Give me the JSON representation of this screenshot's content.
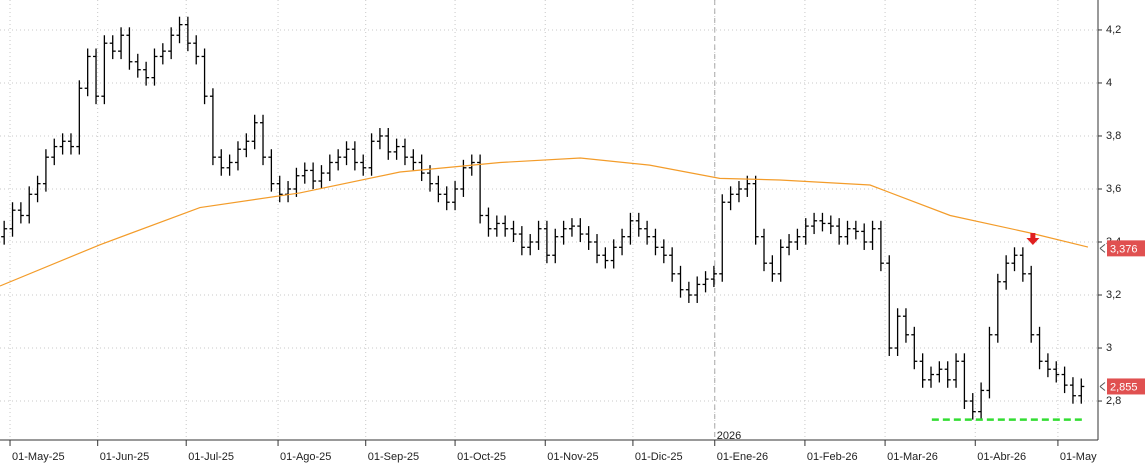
{
  "chart_data": {
    "type": "ohlc",
    "xlim": [
      -0.5,
      131
    ],
    "ylim": [
      2.653,
      4.313
    ],
    "yticks": [
      {
        "value": 2.8,
        "label": "2,8"
      },
      3,
      {
        "value": 3.2,
        "label": "3,2"
      },
      {
        "value": 3.4,
        "label": "3,4"
      },
      {
        "value": 3.6,
        "label": "3,6"
      },
      {
        "value": 3.8,
        "label": "3,8"
      },
      4,
      {
        "value": 4.2,
        "label": "4,2"
      }
    ],
    "xticks": [
      {
        "value": 0.7,
        "label": "01-May-25"
      },
      {
        "value": 11.2,
        "label": "01-Jun-25"
      },
      {
        "value": 21.8,
        "label": "01-Jul-25"
      },
      {
        "value": 32.8,
        "label": "01-Ago-25"
      },
      {
        "value": 43.3,
        "label": "01-Sep-25"
      },
      {
        "value": 54,
        "label": "01-Oct-25"
      },
      {
        "value": 64.8,
        "label": "01-Nov-25"
      },
      {
        "value": 75.3,
        "label": "01-Dic-25"
      },
      {
        "value": 85.1,
        "label": "01-Ene-26"
      },
      {
        "value": 95.9,
        "label": "01-Feb-26"
      },
      {
        "value": 105.5,
        "label": "01-Mar-26"
      },
      {
        "value": 116.3,
        "label": "01-Abr-26"
      },
      {
        "value": 126.2,
        "label": "01-May"
      }
    ],
    "grid": true,
    "year_marker": {
      "x": 85.1,
      "label": "2026"
    },
    "series": [
      {
        "color": "#000000",
        "open": [
          3.42,
          3.45,
          3.52,
          3.5,
          3.58,
          3.62,
          3.72,
          3.76,
          3.78,
          3.76,
          3.98,
          4.1,
          3.95,
          4.15,
          4.12,
          4.18,
          4.08,
          4.05,
          4.02,
          4.1,
          4.12,
          4.18,
          4.22,
          4.15,
          4.1,
          3.95,
          3.72,
          3.68,
          3.7,
          3.75,
          3.78,
          3.85,
          3.72,
          3.62,
          3.58,
          3.6,
          3.65,
          3.67,
          3.63,
          3.66,
          3.7,
          3.72,
          3.75,
          3.7,
          3.68,
          3.78,
          3.8,
          3.74,
          3.76,
          3.72,
          3.7,
          3.66,
          3.62,
          3.58,
          3.55,
          3.6,
          3.68,
          3.7,
          3.5,
          3.45,
          3.47,
          3.45,
          3.43,
          3.38,
          3.4,
          3.45,
          3.35,
          3.42,
          3.45,
          3.46,
          3.43,
          3.4,
          3.35,
          3.33,
          3.38,
          3.42,
          3.48,
          3.45,
          3.42,
          3.38,
          3.35,
          3.28,
          3.22,
          3.2,
          3.24,
          3.26,
          3.28,
          3.55,
          3.58,
          3.6,
          3.62,
          3.42,
          3.32,
          3.28,
          3.38,
          3.4,
          3.42,
          3.46,
          3.48,
          3.47,
          3.46,
          3.42,
          3.45,
          3.44,
          3.4,
          3.45,
          3.32,
          3.0,
          3.12,
          3.05,
          2.95,
          2.88,
          2.9,
          2.92,
          2.88,
          2.95,
          2.8,
          2.76,
          2.84,
          3.05,
          3.25,
          3.32,
          3.35,
          3.28,
          3.05,
          2.95,
          2.92,
          2.9,
          2.86,
          2.82
        ],
        "high": [
          3.48,
          3.55,
          3.55,
          3.61,
          3.65,
          3.75,
          3.79,
          3.81,
          3.81,
          4.01,
          4.13,
          4.13,
          4.18,
          4.18,
          4.21,
          4.21,
          4.11,
          4.08,
          4.13,
          4.15,
          4.21,
          4.25,
          4.25,
          4.18,
          4.13,
          3.98,
          3.75,
          3.73,
          3.78,
          3.81,
          3.88,
          3.88,
          3.75,
          3.65,
          3.63,
          3.68,
          3.7,
          3.7,
          3.69,
          3.73,
          3.75,
          3.78,
          3.78,
          3.73,
          3.81,
          3.83,
          3.83,
          3.79,
          3.79,
          3.75,
          3.73,
          3.69,
          3.65,
          3.61,
          3.63,
          3.71,
          3.73,
          3.73,
          3.53,
          3.5,
          3.5,
          3.48,
          3.46,
          3.43,
          3.48,
          3.48,
          3.45,
          3.48,
          3.49,
          3.49,
          3.46,
          3.43,
          3.38,
          3.41,
          3.45,
          3.51,
          3.51,
          3.48,
          3.45,
          3.41,
          3.38,
          3.31,
          3.25,
          3.27,
          3.29,
          3.31,
          3.58,
          3.61,
          3.63,
          3.65,
          3.65,
          3.45,
          3.35,
          3.41,
          3.43,
          3.45,
          3.49,
          3.51,
          3.51,
          3.5,
          3.49,
          3.48,
          3.48,
          3.47,
          3.48,
          3.48,
          3.35,
          3.15,
          3.15,
          3.08,
          2.98,
          2.93,
          2.95,
          2.95,
          2.98,
          2.98,
          2.83,
          2.87,
          3.08,
          3.28,
          3.35,
          3.38,
          3.38,
          3.31,
          3.08,
          2.98,
          2.95,
          2.93,
          2.89,
          2.885
        ],
        "low": [
          3.39,
          3.42,
          3.47,
          3.47,
          3.55,
          3.59,
          3.69,
          3.73,
          3.73,
          3.73,
          3.95,
          3.92,
          3.92,
          4.09,
          4.09,
          4.05,
          4.02,
          3.99,
          3.99,
          4.07,
          4.09,
          4.15,
          4.12,
          4.07,
          3.92,
          3.69,
          3.65,
          3.65,
          3.67,
          3.72,
          3.75,
          3.69,
          3.59,
          3.55,
          3.55,
          3.57,
          3.62,
          3.6,
          3.6,
          3.63,
          3.67,
          3.69,
          3.67,
          3.65,
          3.65,
          3.75,
          3.71,
          3.71,
          3.69,
          3.67,
          3.63,
          3.59,
          3.55,
          3.52,
          3.52,
          3.57,
          3.65,
          3.47,
          3.42,
          3.42,
          3.42,
          3.4,
          3.35,
          3.35,
          3.37,
          3.32,
          3.32,
          3.39,
          3.42,
          3.4,
          3.37,
          3.32,
          3.3,
          3.3,
          3.35,
          3.39,
          3.42,
          3.39,
          3.35,
          3.32,
          3.25,
          3.19,
          3.17,
          3.17,
          3.21,
          3.23,
          3.25,
          3.52,
          3.55,
          3.57,
          3.39,
          3.29,
          3.25,
          3.25,
          3.35,
          3.37,
          3.39,
          3.43,
          3.44,
          3.43,
          3.39,
          3.39,
          3.41,
          3.37,
          3.37,
          3.29,
          2.97,
          2.97,
          3.02,
          2.92,
          2.85,
          2.85,
          2.87,
          2.85,
          2.85,
          2.77,
          2.73,
          2.73,
          2.81,
          3.02,
          3.22,
          3.29,
          3.25,
          3.02,
          2.92,
          2.89,
          2.87,
          2.83,
          2.79,
          2.79
        ],
        "close": [
          3.45,
          3.52,
          3.5,
          3.58,
          3.62,
          3.72,
          3.76,
          3.78,
          3.76,
          3.98,
          4.1,
          3.95,
          4.15,
          4.12,
          4.18,
          4.08,
          4.05,
          4.02,
          4.1,
          4.12,
          4.18,
          4.22,
          4.15,
          4.1,
          3.95,
          3.72,
          3.68,
          3.7,
          3.75,
          3.78,
          3.85,
          3.72,
          3.62,
          3.58,
          3.6,
          3.65,
          3.67,
          3.63,
          3.66,
          3.7,
          3.72,
          3.75,
          3.7,
          3.68,
          3.78,
          3.8,
          3.74,
          3.76,
          3.72,
          3.7,
          3.66,
          3.62,
          3.58,
          3.55,
          3.6,
          3.68,
          3.7,
          3.5,
          3.45,
          3.47,
          3.45,
          3.43,
          3.38,
          3.4,
          3.45,
          3.35,
          3.42,
          3.45,
          3.46,
          3.43,
          3.4,
          3.35,
          3.33,
          3.38,
          3.42,
          3.48,
          3.45,
          3.42,
          3.38,
          3.35,
          3.28,
          3.22,
          3.2,
          3.24,
          3.26,
          3.28,
          3.55,
          3.58,
          3.6,
          3.62,
          3.42,
          3.32,
          3.28,
          3.38,
          3.4,
          3.42,
          3.46,
          3.48,
          3.47,
          3.46,
          3.42,
          3.45,
          3.44,
          3.4,
          3.45,
          3.32,
          3.0,
          3.12,
          3.05,
          2.95,
          2.88,
          2.9,
          2.92,
          2.88,
          2.95,
          2.8,
          2.76,
          2.84,
          3.05,
          3.25,
          3.32,
          3.35,
          3.28,
          3.05,
          2.95,
          2.92,
          2.9,
          2.86,
          2.82,
          2.855
        ]
      }
    ],
    "moving_average": {
      "color": "#f39c2a",
      "x": [
        -0.5,
        11.5,
        23.45,
        35.4,
        47.4,
        59.4,
        69,
        77.3,
        85.7,
        92.9,
        103.7,
        113.3,
        122.9,
        129.8
      ],
      "values": [
        3.234,
        3.39,
        3.53,
        3.585,
        3.664,
        3.7,
        3.717,
        3.69,
        3.64,
        3.634,
        3.615,
        3.5,
        3.434,
        3.381
      ]
    },
    "price_labels": [
      {
        "value": 3.376,
        "label": "3,376",
        "color": "#e05050"
      },
      {
        "value": 2.855,
        "label": "2,855",
        "color": "#e05050"
      }
    ],
    "support_line": {
      "value": 2.73,
      "x": [
        111.1,
        129.4
      ],
      "color": "#33dd33"
    },
    "arrow": {
      "x": 123.2,
      "value": 3.4,
      "color": "#e02020"
    }
  }
}
